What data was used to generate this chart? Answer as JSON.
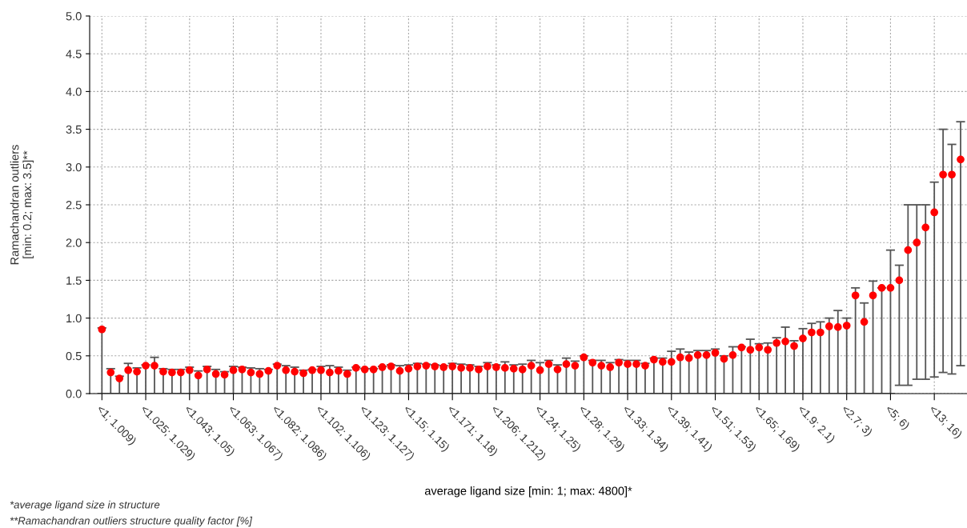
{
  "chart_data": {
    "type": "scatter",
    "xlabel": "average ligand size [min: 1; max: 4800]*",
    "ylabel": "Ramachandran outliers\n[min: 0.2; max: 3.5]**",
    "annotations": [
      "*average ligand size in structure",
      "**Ramachandran outliers structure quality factor [%]"
    ],
    "categories": [
      "<1; 1.009)",
      null,
      null,
      null,
      null,
      "<1.025; 1.029)",
      null,
      null,
      null,
      null,
      "<1.043; 1.05)",
      null,
      null,
      null,
      null,
      "<1.063; 1.067)",
      null,
      null,
      null,
      null,
      "<1.082; 1.086)",
      null,
      null,
      null,
      null,
      "<1.102; 1.106)",
      null,
      null,
      null,
      null,
      "<1.123; 1.127)",
      null,
      null,
      null,
      null,
      "<1.15; 1.15)",
      null,
      null,
      null,
      null,
      "<1.171; 1.18)",
      null,
      null,
      null,
      null,
      "<1.206; 1.212)",
      null,
      null,
      null,
      null,
      "<1.24; 1.25)",
      null,
      null,
      null,
      null,
      "<1.28; 1.29)",
      null,
      null,
      null,
      null,
      "<1.33; 1.34)",
      null,
      null,
      null,
      null,
      "<1.39; 1.41)",
      null,
      null,
      null,
      null,
      "<1.51; 1.53)",
      null,
      null,
      null,
      null,
      "<1.65; 1.69)",
      null,
      null,
      null,
      null,
      "<1.9; 2.1)",
      null,
      null,
      null,
      null,
      "<2.7; 3)",
      null,
      null,
      null,
      null,
      "<5; 6)",
      null,
      null,
      null,
      null,
      "<13; 16)",
      null,
      null,
      null
    ],
    "series": [
      {
        "color": "#ff0000",
        "values": [
          0.85,
          0.28,
          0.2,
          0.31,
          0.29,
          0.37,
          0.37,
          0.29,
          0.28,
          0.28,
          0.31,
          0.24,
          0.32,
          0.26,
          0.25,
          0.31,
          0.32,
          0.28,
          0.26,
          0.3,
          0.37,
          0.31,
          0.29,
          0.27,
          0.31,
          0.31,
          0.28,
          0.3,
          0.26,
          0.34,
          0.32,
          0.32,
          0.35,
          0.36,
          0.3,
          0.33,
          0.36,
          0.37,
          0.36,
          0.35,
          0.36,
          0.34,
          0.34,
          0.32,
          0.36,
          0.35,
          0.34,
          0.33,
          0.32,
          0.37,
          0.31,
          0.39,
          0.32,
          0.39,
          0.37,
          0.48,
          0.41,
          0.37,
          0.35,
          0.41,
          0.39,
          0.39,
          0.37,
          0.45,
          0.42,
          0.42,
          0.48,
          0.47,
          0.51,
          0.51,
          0.54,
          0.46,
          0.51,
          0.61,
          0.58,
          0.61,
          0.58,
          0.67,
          0.69,
          0.63,
          0.73,
          0.81,
          0.81,
          0.89,
          0.88,
          0.9,
          1.3,
          0.95,
          1.3,
          1.4,
          1.4,
          1.5,
          1.9,
          2.0,
          2.2,
          2.4,
          2.9,
          2.9,
          3.1
        ],
        "errors": [
          [
            0,
            0.87
          ],
          [
            0,
            0.33
          ],
          [
            0,
            0.23
          ],
          [
            0,
            0.4
          ],
          [
            0,
            0.34
          ],
          [
            0,
            0.38
          ],
          [
            0,
            0.48
          ],
          [
            0,
            0.33
          ],
          [
            0,
            0.32
          ],
          [
            0,
            0.32
          ],
          [
            0,
            0.35
          ],
          [
            0,
            0.3
          ],
          [
            0,
            0.36
          ],
          [
            0,
            0.32
          ],
          [
            0,
            0.29
          ],
          [
            0,
            0.36
          ],
          [
            0,
            0.35
          ],
          [
            0,
            0.34
          ],
          [
            0,
            0.33
          ],
          [
            0,
            0.32
          ],
          [
            0,
            0.39
          ],
          [
            0,
            0.37
          ],
          [
            0,
            0.35
          ],
          [
            0,
            0.31
          ],
          [
            0,
            0.32
          ],
          [
            0,
            0.36
          ],
          [
            0,
            0.37
          ],
          [
            0,
            0.35
          ],
          [
            0,
            0.31
          ],
          [
            0,
            0.35
          ],
          [
            0,
            0.33
          ],
          [
            0,
            0.33
          ],
          [
            0,
            0.36
          ],
          [
            0,
            0.38
          ],
          [
            0,
            0.37
          ],
          [
            0,
            0.38
          ],
          [
            0,
            0.4
          ],
          [
            0,
            0.39
          ],
          [
            0,
            0.38
          ],
          [
            0,
            0.37
          ],
          [
            0,
            0.4
          ],
          [
            0,
            0.39
          ],
          [
            0,
            0.38
          ],
          [
            0,
            0.36
          ],
          [
            0,
            0.41
          ],
          [
            0,
            0.38
          ],
          [
            0,
            0.42
          ],
          [
            0,
            0.38
          ],
          [
            0,
            0.39
          ],
          [
            0,
            0.44
          ],
          [
            0,
            0.41
          ],
          [
            0,
            0.44
          ],
          [
            0,
            0.38
          ],
          [
            0,
            0.47
          ],
          [
            0,
            0.43
          ],
          [
            0,
            0.5
          ],
          [
            0,
            0.44
          ],
          [
            0,
            0.44
          ],
          [
            0,
            0.41
          ],
          [
            0,
            0.45
          ],
          [
            0,
            0.44
          ],
          [
            0,
            0.44
          ],
          [
            0,
            0.4
          ],
          [
            0,
            0.47
          ],
          [
            0,
            0.47
          ],
          [
            0,
            0.56
          ],
          [
            0,
            0.59
          ],
          [
            0,
            0.55
          ],
          [
            0,
            0.57
          ],
          [
            0,
            0.57
          ],
          [
            0,
            0.59
          ],
          [
            0,
            0.5
          ],
          [
            0,
            0.62
          ],
          [
            0,
            0.62
          ],
          [
            0,
            0.72
          ],
          [
            0,
            0.66
          ],
          [
            0,
            0.67
          ],
          [
            0,
            0.74
          ],
          [
            0,
            0.88
          ],
          [
            0,
            0.7
          ],
          [
            0,
            0.86
          ],
          [
            0,
            0.93
          ],
          [
            0,
            0.95
          ],
          [
            0,
            1.0
          ],
          [
            0,
            1.1
          ],
          [
            0,
            1.0
          ],
          [
            0,
            1.4
          ],
          [
            0,
            1.2
          ],
          [
            0,
            1.49
          ],
          [
            0,
            1.4
          ],
          [
            0,
            1.9
          ],
          [
            0.11,
            1.7
          ],
          [
            0.11,
            2.5
          ],
          [
            0.19,
            2.5
          ],
          [
            0.19,
            2.5
          ],
          [
            0.22,
            2.8
          ],
          [
            0.28,
            3.5
          ],
          [
            0.26,
            3.3
          ],
          [
            0.37,
            3.6
          ]
        ]
      }
    ],
    "ylim": [
      0,
      5
    ],
    "yticks": [
      {
        "value": 0,
        "label": "0.0"
      },
      {
        "value": 0.5,
        "label": "0.5"
      },
      {
        "value": 1,
        "label": "1.0"
      },
      {
        "value": 1.5,
        "label": "1.5"
      },
      {
        "value": 2,
        "label": "2.0"
      },
      {
        "value": 2.5,
        "label": "2.5"
      },
      {
        "value": 3,
        "label": "3.0"
      },
      {
        "value": 3.5,
        "label": "3.5"
      },
      {
        "value": 4,
        "label": "4.0"
      },
      {
        "value": 4.5,
        "label": "4.5"
      },
      {
        "value": 5,
        "label": "5.0"
      }
    ],
    "grid": true,
    "marker": "circle"
  }
}
